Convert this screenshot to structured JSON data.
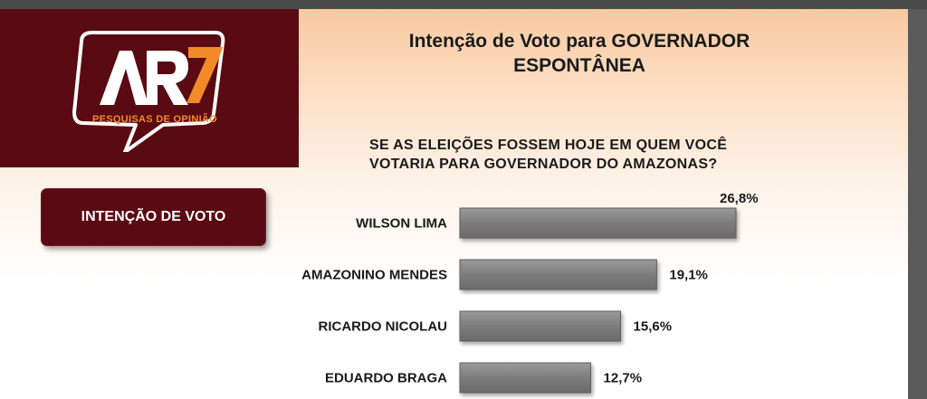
{
  "logo": {
    "mark": "AR7",
    "subtitle": "PESQUISAS DE OPINIÃO",
    "colors": {
      "background": "#5a0a12",
      "accent": "#f28a2a"
    }
  },
  "title_line1": "Intenção de Voto para GOVERNADOR",
  "title_line2": "ESPONTÂNEA",
  "question_line1": "SE AS ELEIÇÕES FOSSEM HOJE EM QUEM VOCÊ",
  "question_line2": "VOTARIA PARA GOVERNADOR DO AMAZONAS?",
  "intent_button": "INTENÇÃO DE VOTO",
  "chart_data": {
    "type": "bar",
    "orientation": "horizontal",
    "categories": [
      "WILSON LIMA",
      "AMAZONINO MENDES",
      "RICARDO NICOLAU",
      "EDUARDO BRAGA"
    ],
    "values": [
      26.8,
      19.1,
      15.6,
      12.7
    ],
    "value_labels": [
      "26,8%",
      "19,1%",
      "15,6%",
      "12,7%"
    ],
    "unit": "%",
    "bar_color": "#808080"
  }
}
